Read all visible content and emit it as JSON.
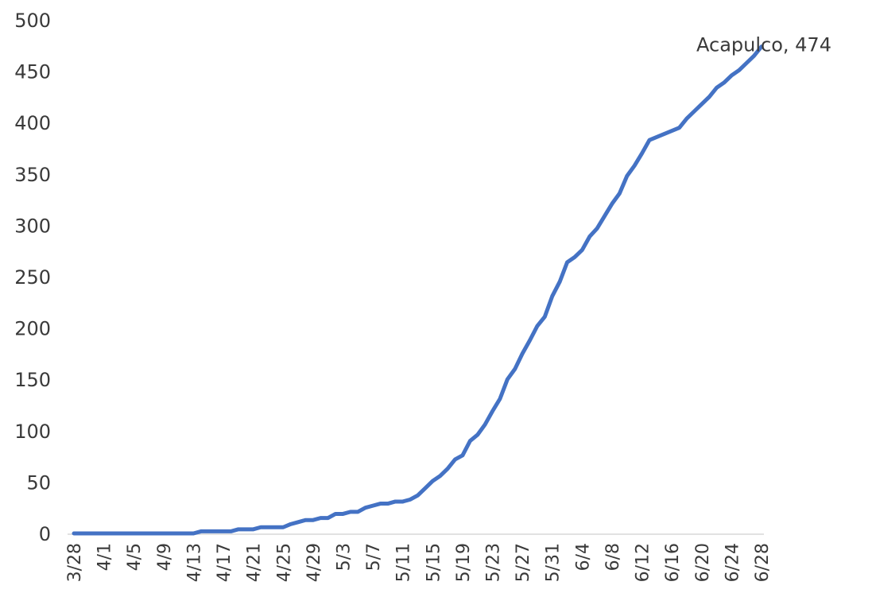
{
  "chart_data": {
    "type": "line",
    "title": "",
    "xlabel": "",
    "ylabel": "",
    "ylim": [
      0,
      500
    ],
    "yticks": [
      0,
      50,
      100,
      150,
      200,
      250,
      300,
      350,
      400,
      450,
      500
    ],
    "grid": false,
    "legend": "none",
    "x_tick_labels": [
      "3/28",
      "4/1",
      "4/5",
      "4/9",
      "4/13",
      "4/17",
      "4/21",
      "4/25",
      "4/29",
      "5/3",
      "5/7",
      "5/11",
      "5/15",
      "5/19",
      "5/23",
      "5/27",
      "5/31",
      "6/4",
      "6/8",
      "6/12",
      "6/16",
      "6/20",
      "6/24",
      "6/28"
    ],
    "series": [
      {
        "color": "#4472c4",
        "x": [
          "3/28",
          "3/29",
          "3/30",
          "3/31",
          "4/1",
          "4/2",
          "4/3",
          "4/4",
          "4/5",
          "4/6",
          "4/7",
          "4/8",
          "4/9",
          "4/10",
          "4/11",
          "4/12",
          "4/13",
          "4/14",
          "4/15",
          "4/16",
          "4/17",
          "4/18",
          "4/19",
          "4/20",
          "4/21",
          "4/22",
          "4/23",
          "4/24",
          "4/25",
          "4/26",
          "4/27",
          "4/28",
          "4/29",
          "4/30",
          "5/1",
          "5/2",
          "5/3",
          "5/4",
          "5/5",
          "5/6",
          "5/7",
          "5/8",
          "5/9",
          "5/10",
          "5/11",
          "5/12",
          "5/13",
          "5/14",
          "5/15",
          "5/16",
          "5/17",
          "5/18",
          "5/19",
          "5/20",
          "5/21",
          "5/22",
          "5/23",
          "5/24",
          "5/25",
          "5/26",
          "5/27",
          "5/28",
          "5/29",
          "5/30",
          "5/31",
          "6/1",
          "6/2",
          "6/3",
          "6/4",
          "6/5",
          "6/6",
          "6/7",
          "6/8",
          "6/9",
          "6/10",
          "6/11",
          "6/12",
          "6/13",
          "6/14",
          "6/15",
          "6/16",
          "6/17",
          "6/18",
          "6/19",
          "6/20",
          "6/21",
          "6/22",
          "6/23",
          "6/24",
          "6/25",
          "6/26",
          "6/27",
          "6/28"
        ],
        "values": [
          0,
          0,
          0,
          0,
          0,
          0,
          0,
          0,
          0,
          0,
          0,
          0,
          0,
          0,
          0,
          0,
          0,
          2,
          2,
          2,
          2,
          2,
          4,
          4,
          4,
          6,
          6,
          6,
          6,
          9,
          11,
          13,
          13,
          15,
          15,
          19,
          19,
          21,
          21,
          25,
          27,
          29,
          29,
          31,
          31,
          33,
          37,
          44,
          51,
          56,
          63,
          72,
          76,
          90,
          96,
          106,
          119,
          131,
          150,
          160,
          175,
          188,
          202,
          211,
          231,
          245,
          264,
          269,
          276,
          289,
          297,
          309,
          321,
          331,
          348,
          358,
          370,
          383,
          386,
          389,
          392,
          395,
          404,
          411,
          418,
          425,
          434,
          439,
          446,
          451,
          458,
          465,
          474
        ]
      }
    ],
    "annotations": [
      {
        "text": "Acapulco, 474",
        "x": "6/28",
        "y": 474
      }
    ]
  }
}
